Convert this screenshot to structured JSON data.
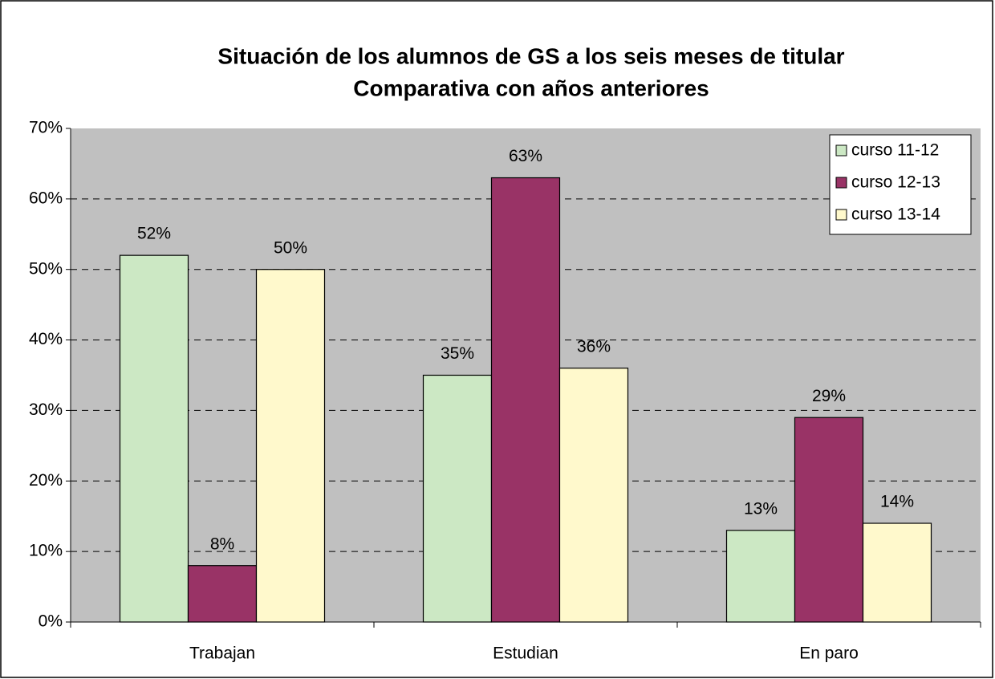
{
  "chart_data": {
    "type": "bar",
    "title": "Situación de los alumnos de GS a los seis meses de titular",
    "subtitle": "Comparativa con años anteriores",
    "categories": [
      "Trabajan",
      "Estudian",
      "En paro"
    ],
    "series": [
      {
        "name": "curso 11-12",
        "color": "#cce8c4",
        "values": [
          52,
          35,
          13
        ],
        "value_labels": [
          "52%",
          "35%",
          "13%"
        ]
      },
      {
        "name": "curso 12-13",
        "color": "#993366",
        "values": [
          8,
          63,
          29
        ],
        "value_labels": [
          "8%",
          "63%",
          "29%"
        ]
      },
      {
        "name": "curso 13-14",
        "color": "#fff9cc",
        "values": [
          50,
          36,
          14
        ],
        "value_labels": [
          "50%",
          "36%",
          "14%"
        ]
      }
    ],
    "ylim": [
      0,
      70
    ],
    "yticks": [
      {
        "value": 0,
        "label": "0%"
      },
      {
        "value": 10,
        "label": "10%"
      },
      {
        "value": 20,
        "label": "20%"
      },
      {
        "value": 30,
        "label": "30%"
      },
      {
        "value": 40,
        "label": "40%"
      },
      {
        "value": 50,
        "label": "50%"
      },
      {
        "value": 60,
        "label": "60%"
      },
      {
        "value": 70,
        "label": "70%"
      }
    ],
    "grid": true,
    "legend": "upper right"
  }
}
